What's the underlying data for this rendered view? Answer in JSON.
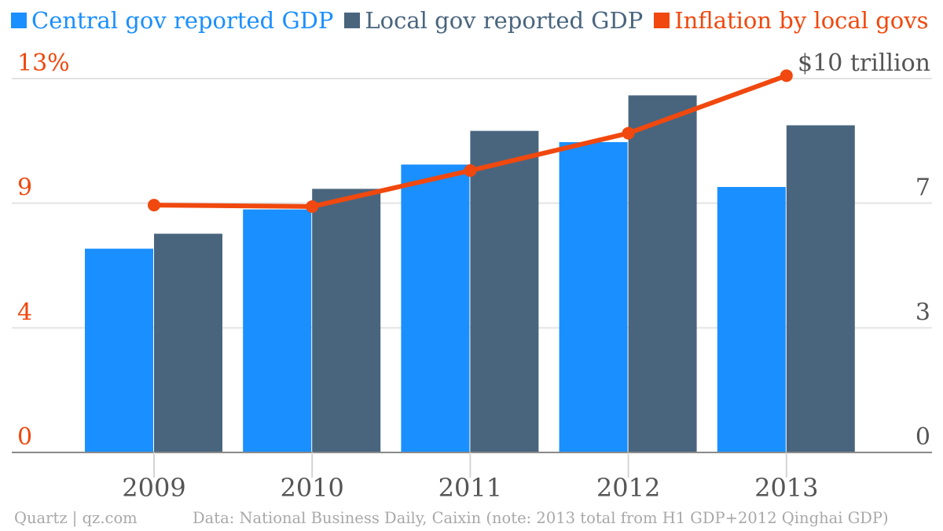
{
  "chart_data": {
    "type": "bar",
    "categories": [
      "2009",
      "2010",
      "2011",
      "2012",
      "2013"
    ],
    "series": [
      {
        "name": "Central gov reported GDP",
        "kind": "bar",
        "axis": "right",
        "color": "#1a8fff",
        "values": [
          5.45,
          6.5,
          7.7,
          8.3,
          7.1
        ]
      },
      {
        "name": "Local gov reported GDP",
        "kind": "bar",
        "axis": "right",
        "color": "#49657e",
        "values": [
          5.85,
          7.05,
          8.6,
          9.55,
          8.75
        ]
      },
      {
        "name": "Inflation by local govs",
        "kind": "line",
        "axis": "left",
        "color": "#f0480e",
        "values": [
          8.6,
          8.55,
          9.8,
          11.1,
          13.1
        ]
      }
    ],
    "left_axis": {
      "ticks": [
        "13%",
        "9",
        "4",
        "0"
      ],
      "ylim": [
        0,
        13
      ],
      "color": "#f0480e"
    },
    "right_axis": {
      "ticks": [
        "$10 trillion",
        "7",
        "3",
        "0"
      ],
      "ylim": [
        0,
        10
      ],
      "color": "#555555"
    },
    "grid": true,
    "legend_position": "top-left"
  },
  "footer": {
    "brand": "Quartz | qz.com",
    "source": "Data: National Business Daily, Caixin (note: 2013 total from H1 GDP+2012 Qinghai GDP)"
  }
}
